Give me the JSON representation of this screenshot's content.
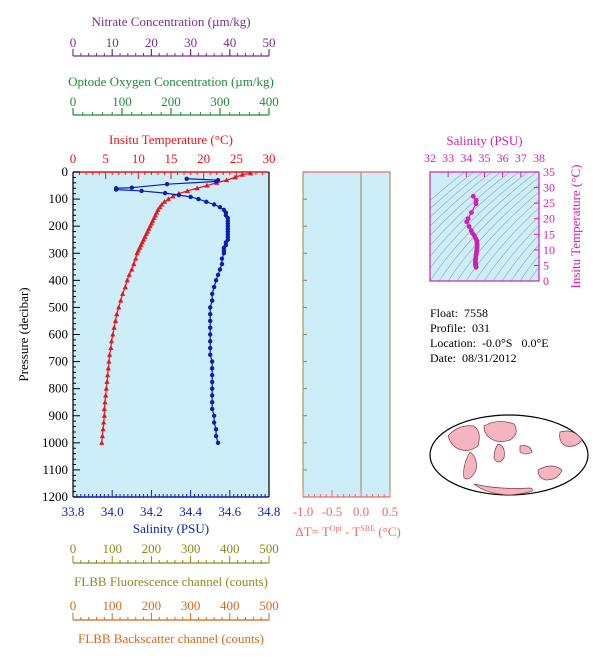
{
  "colors": {
    "nitrate": "#7b2d8b",
    "oxygen": "#1f8a3a",
    "temperature": "#e8141b",
    "salinity": "#0a1eb4",
    "delta": "#f06a6a",
    "ts": "#d01fb4",
    "fluorescence": "#8a8a1e",
    "backscatter": "#d2691e",
    "panel_bg": "#cdeef8"
  },
  "info": {
    "float_label": "Float:",
    "float_value": "7558",
    "profile_label": "Profile:",
    "profile_value": "031",
    "location_label": "Location:",
    "location_value": "-0.0°S   0.0°E",
    "date_label": "Date:",
    "date_value": "08/31/2012"
  },
  "chart_data": [
    {
      "id": "main-profile",
      "type": "line",
      "ylabel": "Pressure (decibar)",
      "ylim": [
        1200,
        0
      ],
      "yticks": [
        0,
        100,
        200,
        300,
        400,
        500,
        600,
        700,
        800,
        900,
        1000,
        1100,
        1200
      ],
      "axes": {
        "nitrate": {
          "label": "Nitrate Concentration (µm/kg)",
          "range": [
            0,
            50
          ],
          "ticks": [
            0,
            10,
            20,
            30,
            40,
            50
          ]
        },
        "oxygen": {
          "label": "Optode Oxygen Concentration (µm/kg)",
          "range": [
            0,
            400
          ],
          "ticks": [
            0,
            100,
            200,
            300,
            400
          ]
        },
        "temperature": {
          "label": "Insitu Temperature (°C)",
          "range": [
            0,
            30
          ],
          "ticks": [
            0,
            5,
            10,
            15,
            20,
            25,
            30
          ]
        },
        "salinity": {
          "label": "Salinity (PSU)",
          "range": [
            33.8,
            34.8
          ],
          "ticks": [
            "33.8",
            "34.0",
            "34.2",
            "34.4",
            "34.6",
            "34.8"
          ]
        },
        "fluorescence": {
          "label": "FLBB Fluorescence channel (counts)",
          "range": [
            0,
            500
          ],
          "ticks": [
            0,
            100,
            200,
            300,
            400,
            500
          ]
        },
        "backscatter": {
          "label": "FLBB Backscatter channel (counts)",
          "range": [
            0,
            500
          ],
          "ticks": [
            0,
            100,
            200,
            300,
            400,
            500
          ]
        }
      },
      "series": [
        {
          "name": "temperature",
          "axis": "temperature",
          "marker": "triangle",
          "points": [
            [
              27.2,
              5
            ],
            [
              25.9,
              10
            ],
            [
              24.8,
              20
            ],
            [
              23.5,
              30
            ],
            [
              22.0,
              40
            ],
            [
              20.5,
              50
            ],
            [
              19.0,
              60
            ],
            [
              17.5,
              70
            ],
            [
              16.2,
              80
            ],
            [
              15.3,
              90
            ],
            [
              14.6,
              100
            ],
            [
              14.0,
              110
            ],
            [
              13.6,
              120
            ],
            [
              13.3,
              130
            ],
            [
              13.0,
              140
            ],
            [
              12.8,
              150
            ],
            [
              12.6,
              160
            ],
            [
              12.4,
              170
            ],
            [
              12.2,
              180
            ],
            [
              12.0,
              190
            ],
            [
              11.8,
              200
            ],
            [
              11.6,
              210
            ],
            [
              11.4,
              220
            ],
            [
              11.2,
              230
            ],
            [
              11.0,
              240
            ],
            [
              10.8,
              250
            ],
            [
              10.6,
              260
            ],
            [
              10.4,
              270
            ],
            [
              10.2,
              280
            ],
            [
              10.0,
              290
            ],
            [
              9.8,
              300
            ],
            [
              9.6,
              320
            ],
            [
              9.3,
              340
            ],
            [
              9.0,
              360
            ],
            [
              8.6,
              380
            ],
            [
              8.3,
              400
            ],
            [
              8.0,
              425
            ],
            [
              7.6,
              450
            ],
            [
              7.3,
              475
            ],
            [
              7.0,
              500
            ],
            [
              6.7,
              525
            ],
            [
              6.5,
              550
            ],
            [
              6.3,
              575
            ],
            [
              6.1,
              600
            ],
            [
              5.9,
              625
            ],
            [
              5.8,
              650
            ],
            [
              5.6,
              675
            ],
            [
              5.5,
              700
            ],
            [
              5.4,
              725
            ],
            [
              5.3,
              750
            ],
            [
              5.2,
              775
            ],
            [
              5.1,
              800
            ],
            [
              5.0,
              825
            ],
            [
              4.9,
              850
            ],
            [
              4.8,
              875
            ],
            [
              4.8,
              900
            ],
            [
              4.7,
              925
            ],
            [
              4.6,
              950
            ],
            [
              4.5,
              975
            ],
            [
              4.4,
              1000
            ]
          ]
        },
        {
          "name": "salinity",
          "axis": "salinity",
          "marker": "circle",
          "points": [
            [
              34.38,
              25
            ],
            [
              34.54,
              30
            ],
            [
              34.53,
              35
            ],
            [
              34.28,
              45
            ],
            [
              34.1,
              58
            ],
            [
              34.02,
              60
            ],
            [
              34.02,
              65
            ],
            [
              34.15,
              70
            ],
            [
              34.27,
              78
            ],
            [
              34.34,
              85
            ],
            [
              34.4,
              92
            ],
            [
              34.44,
              100
            ],
            [
              34.48,
              110
            ],
            [
              34.52,
              120
            ],
            [
              34.55,
              130
            ],
            [
              34.57,
              140
            ],
            [
              34.58,
              150
            ],
            [
              34.58,
              160
            ],
            [
              34.59,
              170
            ],
            [
              34.59,
              180
            ],
            [
              34.59,
              190
            ],
            [
              34.59,
              200
            ],
            [
              34.59,
              210
            ],
            [
              34.59,
              220
            ],
            [
              34.59,
              230
            ],
            [
              34.59,
              240
            ],
            [
              34.59,
              250
            ],
            [
              34.58,
              260
            ],
            [
              34.58,
              270
            ],
            [
              34.57,
              280
            ],
            [
              34.57,
              290
            ],
            [
              34.57,
              300
            ],
            [
              34.56,
              320
            ],
            [
              34.56,
              340
            ],
            [
              34.55,
              360
            ],
            [
              34.54,
              380
            ],
            [
              34.53,
              400
            ],
            [
              34.52,
              425
            ],
            [
              34.51,
              450
            ],
            [
              34.51,
              475
            ],
            [
              34.5,
              500
            ],
            [
              34.5,
              525
            ],
            [
              34.5,
              550
            ],
            [
              34.5,
              575
            ],
            [
              34.5,
              600
            ],
            [
              34.5,
              625
            ],
            [
              34.5,
              650
            ],
            [
              34.5,
              675
            ],
            [
              34.51,
              700
            ],
            [
              34.51,
              725
            ],
            [
              34.51,
              750
            ],
            [
              34.51,
              775
            ],
            [
              34.51,
              800
            ],
            [
              34.51,
              825
            ],
            [
              34.51,
              850
            ],
            [
              34.51,
              875
            ],
            [
              34.52,
              900
            ],
            [
              34.52,
              925
            ],
            [
              34.53,
              950
            ],
            [
              34.53,
              975
            ],
            [
              34.54,
              1000
            ]
          ]
        }
      ]
    },
    {
      "id": "delta-t",
      "type": "line",
      "xlabel": "ΔT= T",
      "xlabel_sup1": "Opt",
      "xlabel_mid": " - T",
      "xlabel_sup2": "SBE",
      "xlabel_end": " (°C)",
      "xlim": [
        -1.0,
        0.5
      ],
      "xticks": [
        "-1.0",
        "-0.5",
        "0.0",
        "0.5"
      ],
      "ylim": [
        1200,
        0
      ],
      "series": []
    },
    {
      "id": "ts-diagram",
      "type": "scatter",
      "xlabel": "Salinity (PSU)",
      "ylabel": "Insitu Temperature (°C)",
      "xlim": [
        32,
        38
      ],
      "ylim": [
        0,
        35
      ],
      "xticks": [
        32,
        33,
        34,
        35,
        36,
        37,
        38
      ],
      "yticks": [
        0,
        5,
        10,
        15,
        20,
        25,
        30,
        35
      ],
      "points": [
        [
          34.38,
          27.2
        ],
        [
          34.54,
          25.9
        ],
        [
          34.53,
          24.8
        ],
        [
          34.28,
          22.0
        ],
        [
          34.1,
          20.0
        ],
        [
          34.02,
          19.0
        ],
        [
          34.15,
          17.5
        ],
        [
          34.27,
          16.2
        ],
        [
          34.34,
          15.3
        ],
        [
          34.44,
          14.6
        ],
        [
          34.52,
          13.6
        ],
        [
          34.57,
          13.0
        ],
        [
          34.58,
          12.6
        ],
        [
          34.59,
          12.0
        ],
        [
          34.59,
          11.4
        ],
        [
          34.59,
          10.8
        ],
        [
          34.58,
          10.2
        ],
        [
          34.57,
          9.8
        ],
        [
          34.56,
          9.3
        ],
        [
          34.55,
          8.6
        ],
        [
          34.53,
          8.3
        ],
        [
          34.52,
          7.6
        ],
        [
          34.51,
          7.0
        ],
        [
          34.5,
          6.5
        ],
        [
          34.5,
          6.1
        ],
        [
          34.5,
          5.8
        ],
        [
          34.51,
          5.5
        ],
        [
          34.51,
          5.2
        ],
        [
          34.51,
          5.0
        ],
        [
          34.52,
          4.8
        ],
        [
          34.53,
          4.6
        ],
        [
          34.54,
          4.4
        ]
      ]
    }
  ]
}
